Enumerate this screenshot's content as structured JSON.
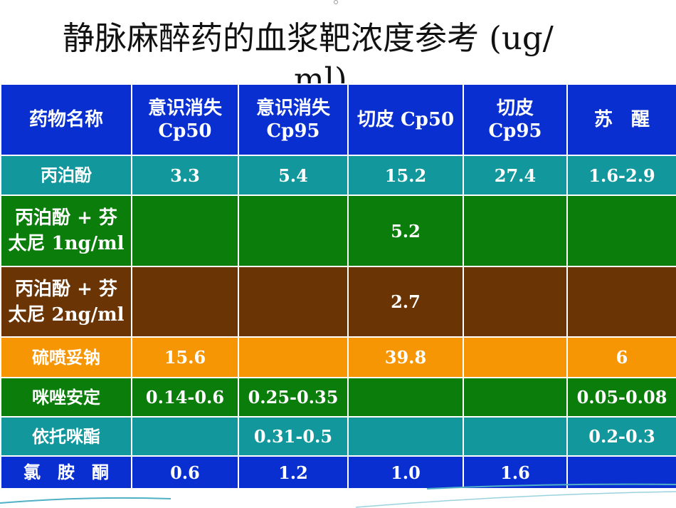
{
  "slide": {
    "title_line1": "静脉麻醉药的血浆靶浓度参考 (ug/",
    "title_line2": "ml)"
  },
  "table": {
    "headers": [
      "药物名称",
      "意识消失\nCp50",
      "意识消失\nCp95",
      "切皮 Cp50",
      "切皮\nCp95",
      "苏　醒"
    ],
    "rows": [
      {
        "name": "丙泊酚",
        "cells": [
          "3.3",
          "5.4",
          "15.2",
          "27.4",
          "1.6-2.9"
        ]
      },
      {
        "name": "丙泊酚 + 芬\n太尼 1ng/ml",
        "cells": [
          "",
          "",
          "5.2",
          "",
          ""
        ]
      },
      {
        "name": "丙泊酚 + 芬\n太尼 2ng/ml",
        "cells": [
          "",
          "",
          "2.7",
          "",
          ""
        ]
      },
      {
        "name": "硫喷妥钠",
        "cells": [
          "15.6",
          "",
          "39.8",
          "",
          "6"
        ]
      },
      {
        "name": "咪唑安定",
        "cells": [
          "0.14-0.6",
          "0.25-0.35",
          "",
          "",
          "0.05-0.08"
        ]
      },
      {
        "name": "依托咪酯",
        "cells": [
          "",
          "0.31-0.5",
          "",
          "",
          "0.2-0.3"
        ]
      },
      {
        "name": "氯　胺　酮",
        "cells": [
          "0.6",
          "1.2",
          "1.0",
          "1.6",
          ""
        ]
      }
    ]
  },
  "colors": {
    "header_blue": "#0a2fd0",
    "teal": "#12979c",
    "green": "#0b7d0b",
    "brown": "#6a3404",
    "orange": "#f79604"
  }
}
